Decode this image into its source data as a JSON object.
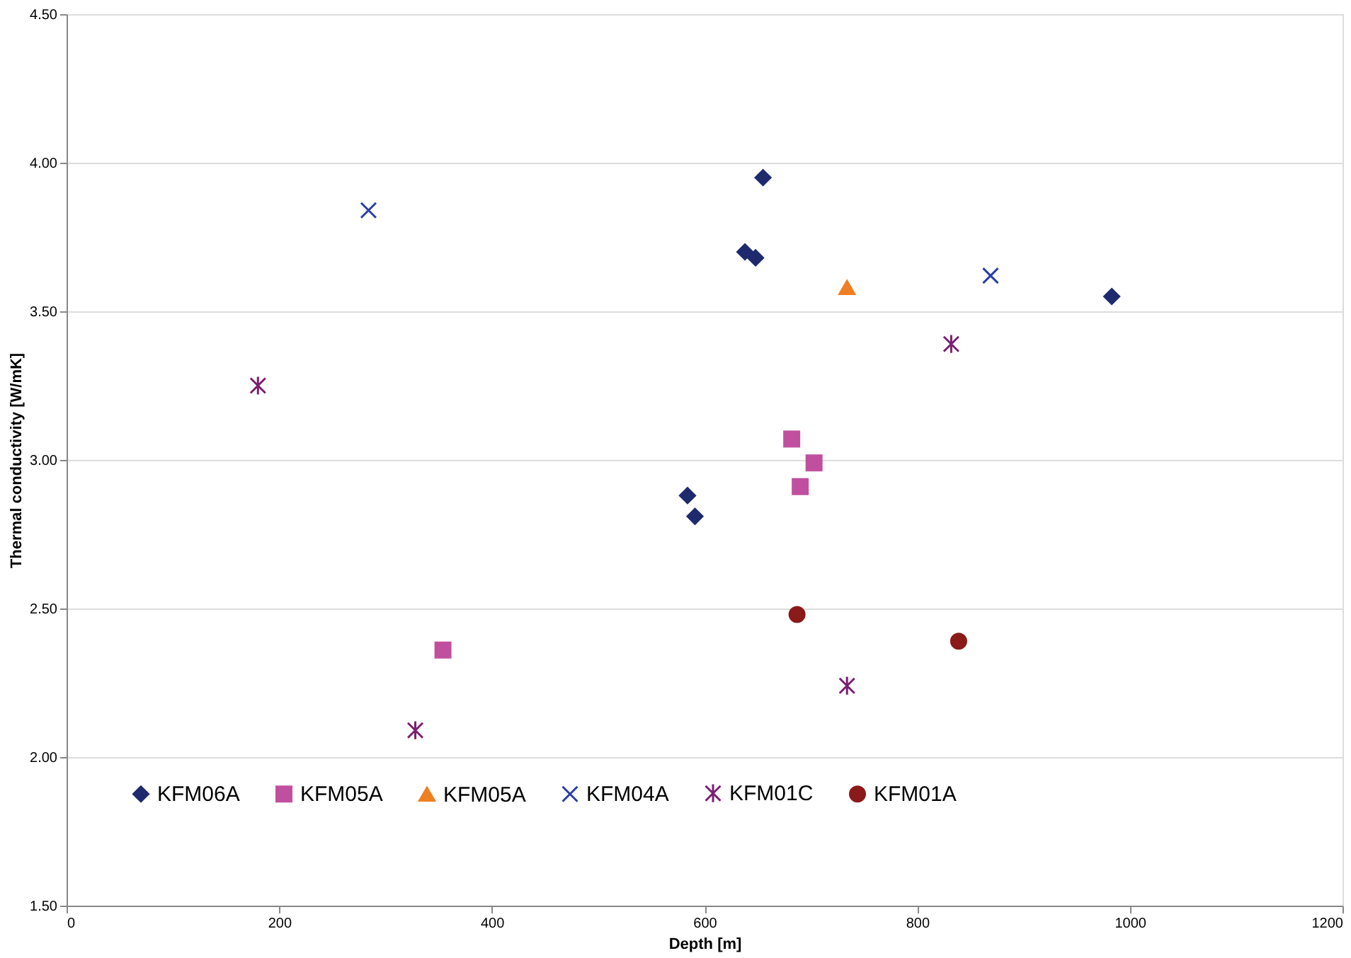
{
  "chart_data": {
    "type": "scatter",
    "xlabel": "Depth [m]",
    "ylabel": "Thermal conductivity [W/mK]",
    "xlim": [
      0,
      1200
    ],
    "xticks": [
      0,
      200,
      400,
      600,
      800,
      1000,
      1200
    ],
    "ylim": [
      1.5,
      4.5
    ],
    "yticks": [
      {
        "value": 1.5,
        "label": "1.50"
      },
      {
        "value": 2.0,
        "label": "2.00"
      },
      {
        "value": 2.5,
        "label": "2.50"
      },
      {
        "value": 3.0,
        "label": "3.00"
      },
      {
        "value": 3.5,
        "label": "3.50"
      },
      {
        "value": 4.0,
        "label": "4.00"
      },
      {
        "value": 4.5,
        "label": "4.50"
      }
    ],
    "grid": "y",
    "legend": "bottom",
    "series": [
      {
        "name": "KFM06A",
        "color": "#1f2a6e",
        "marker": "diamond",
        "x": [
          655,
          638,
          648,
          983,
          584,
          591
        ],
        "values": [
          3.95,
          3.7,
          3.68,
          3.55,
          2.88,
          2.81
        ]
      },
      {
        "name": "KFM05A",
        "color": "#c0509f",
        "marker": "square",
        "x": [
          354,
          682,
          703,
          690
        ],
        "values": [
          2.36,
          3.07,
          2.99,
          2.91
        ]
      },
      {
        "name": "KFM05A",
        "color": "#f07f22",
        "marker": "triangle",
        "x": [
          734
        ],
        "values": [
          3.58
        ]
      },
      {
        "name": "KFM04A",
        "color": "#2a3ea8",
        "marker": "cross",
        "x": [
          284,
          869
        ],
        "values": [
          3.84,
          3.62
        ]
      },
      {
        "name": "KFM01C",
        "color": "#7b1f74",
        "marker": "cross",
        "x": [
          180,
          328,
          734,
          832
        ],
        "values": [
          3.25,
          2.09,
          2.24,
          3.39
        ]
      },
      {
        "name": "KFM01A",
        "color": "#8b1a1a",
        "marker": "circle",
        "x": [
          687,
          839
        ],
        "values": [
          2.48,
          2.39
        ]
      }
    ]
  }
}
